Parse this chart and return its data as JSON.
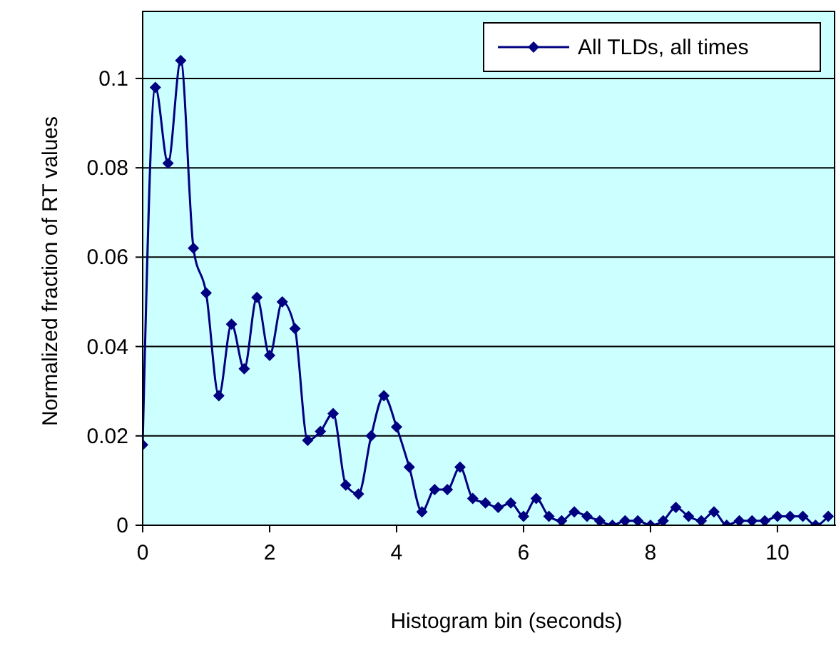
{
  "chart_data": {
    "type": "line",
    "xlabel": "Histogram bin (seconds)",
    "ylabel": "Normalized fraction of RT values",
    "x": [
      0,
      0.2,
      0.4,
      0.6,
      0.8,
      1.0,
      1.2,
      1.4,
      1.6,
      1.8,
      2.0,
      2.2,
      2.4,
      2.6,
      2.8,
      3.0,
      3.2,
      3.4,
      3.6,
      3.8,
      4.0,
      4.2,
      4.4,
      4.6,
      4.8,
      5.0,
      5.2,
      5.4,
      5.6,
      5.8,
      6.0,
      6.2,
      6.4,
      6.6,
      6.8,
      7.0,
      7.2,
      7.4,
      7.6,
      7.8,
      8.0,
      8.2,
      8.4,
      8.6,
      8.8,
      9.0,
      9.2,
      9.4,
      9.6,
      9.8,
      10.0,
      10.2,
      10.4,
      10.6,
      10.8
    ],
    "series": [
      {
        "name": "All TLDs, all times",
        "color": "#000080",
        "values": [
          0.018,
          0.098,
          0.081,
          0.104,
          0.062,
          0.052,
          0.029,
          0.045,
          0.035,
          0.051,
          0.038,
          0.05,
          0.044,
          0.019,
          0.021,
          0.025,
          0.009,
          0.007,
          0.02,
          0.029,
          0.022,
          0.013,
          0.003,
          0.008,
          0.008,
          0.013,
          0.006,
          0.005,
          0.004,
          0.005,
          0.002,
          0.006,
          0.002,
          0.001,
          0.003,
          0.002,
          0.001,
          0.0,
          0.001,
          0.001,
          0.0,
          0.001,
          0.004,
          0.002,
          0.001,
          0.003,
          0.0,
          0.001,
          0.001,
          0.001,
          0.002,
          0.002,
          0.002,
          0.0,
          0.002
        ]
      }
    ],
    "xlim": [
      0,
      10.9
    ],
    "xticks": [
      0,
      2,
      4,
      6,
      8,
      10
    ],
    "ylim": [
      0,
      0.115
    ],
    "yticks": [
      0,
      0.02,
      0.04,
      0.06,
      0.08,
      0.1
    ],
    "grid": "y",
    "legend": "top right",
    "marker": "diamond",
    "line_style": "solid"
  }
}
